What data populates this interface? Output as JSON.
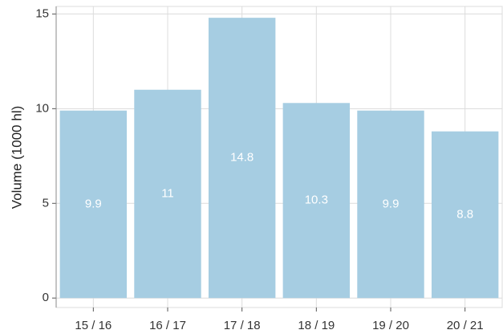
{
  "chart_data": {
    "type": "bar",
    "y_label": "Volume (1000 hl)",
    "categories": [
      "15 / 16",
      "16 / 17",
      "17 / 18",
      "18 / 19",
      "19 / 20",
      "20 / 21"
    ],
    "values": [
      9.9,
      11,
      14.8,
      10.3,
      9.9,
      8.8
    ],
    "color": "#a6cde2",
    "ylim": [
      -0.5,
      15.4
    ],
    "yticks": [
      0,
      5,
      10,
      15
    ],
    "grid": true
  }
}
